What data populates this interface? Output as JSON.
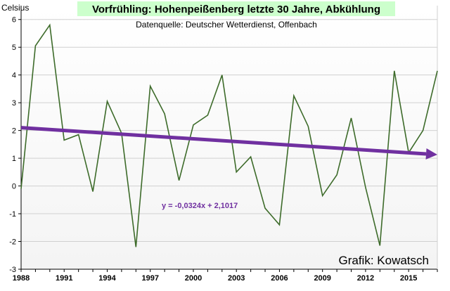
{
  "chart_data": {
    "type": "line",
    "title": "Vorfrühling: Hohenpeißenberg letzte 30 Jahre, Abkühlung",
    "subtitle": "Datenquelle: Deutscher Wetterdienst, Offenbach",
    "ylabel": "Celsius",
    "credit": "Grafik: Kowatsch",
    "ylim": [
      -3,
      6.5
    ],
    "yticks": [
      -3,
      -2,
      -1,
      0,
      1,
      2,
      3,
      4,
      5,
      6
    ],
    "xlim": [
      1988,
      2017
    ],
    "xticks": [
      1988,
      1991,
      1994,
      1997,
      2000,
      2003,
      2006,
      2009,
      2012,
      2015
    ],
    "grid": "horizontal",
    "series": [
      {
        "x": [
          1988,
          1989,
          1990,
          1991,
          1992,
          1993,
          1994,
          1995,
          1996,
          1997,
          1998,
          1999,
          2000,
          2001,
          2002,
          2003,
          2004,
          2005,
          2006,
          2007,
          2008,
          2009,
          2010,
          2011,
          2012,
          2013,
          2014,
          2015,
          2016,
          2017
        ],
        "values": [
          -0.1,
          5.05,
          5.8,
          1.65,
          1.85,
          -0.2,
          3.05,
          1.9,
          -2.2,
          3.6,
          2.6,
          0.2,
          2.2,
          2.55,
          4.0,
          0.5,
          1.05,
          -0.8,
          -1.4,
          3.25,
          2.15,
          -0.35,
          0.4,
          2.45,
          -0.05,
          -2.15,
          4.15,
          1.2,
          2.0,
          4.15
        ],
        "color": "#3d6b2a"
      }
    ],
    "trendline": {
      "equation": "y = -0,0324x + 2,1017",
      "slope": -0.0324,
      "intercept": 2.1017,
      "color": "#7030a0"
    }
  }
}
